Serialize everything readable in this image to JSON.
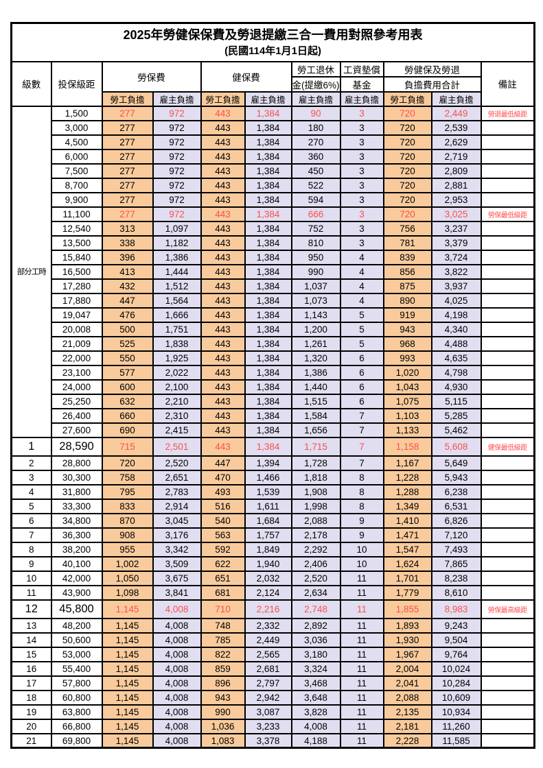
{
  "table": {
    "title": "2025年勞健保保費及勞退提繳三合一費用對照參考用表",
    "subtitle": "(民國114年1月1日起)",
    "headers": {
      "level": "級數",
      "bracket": "投保級距",
      "labor_insurance": "勞保費",
      "health_insurance": "健保費",
      "pension_line1": "勞工退休",
      "pension_line2": "金(提繳6%)",
      "wage_fund_line1": "工資墊償",
      "wage_fund_line2": "基金",
      "total_line1": "勞健保及勞退",
      "total_line2": "負擔費用合計",
      "remark": "備註",
      "employee_share": "勞工負擔",
      "employer_share": "雇主負擔"
    },
    "part_time_label": "部分工時",
    "colors": {
      "employee_column_bg": "#F9CB9C",
      "employer_column_bg": "#E0DEF0",
      "highlight_text": "#FF4D4D",
      "grid": "#000000"
    },
    "rows": [
      {
        "section": "part_time",
        "level": "",
        "bracket": "1,500",
        "values": [
          "277",
          "972",
          "443",
          "1,384",
          "90",
          "3",
          "720",
          "2,449"
        ],
        "remark": "勞退最低級距",
        "highlight": true,
        "emphasis": false
      },
      {
        "section": "part_time",
        "level": "",
        "bracket": "3,000",
        "values": [
          "277",
          "972",
          "443",
          "1,384",
          "180",
          "3",
          "720",
          "2,539"
        ],
        "remark": "",
        "highlight": false,
        "emphasis": false
      },
      {
        "section": "part_time",
        "level": "",
        "bracket": "4,500",
        "values": [
          "277",
          "972",
          "443",
          "1,384",
          "270",
          "3",
          "720",
          "2,629"
        ],
        "remark": "",
        "highlight": false,
        "emphasis": false
      },
      {
        "section": "part_time",
        "level": "",
        "bracket": "6,000",
        "values": [
          "277",
          "972",
          "443",
          "1,384",
          "360",
          "3",
          "720",
          "2,719"
        ],
        "remark": "",
        "highlight": false,
        "emphasis": false
      },
      {
        "section": "part_time",
        "level": "",
        "bracket": "7,500",
        "values": [
          "277",
          "972",
          "443",
          "1,384",
          "450",
          "3",
          "720",
          "2,809"
        ],
        "remark": "",
        "highlight": false,
        "emphasis": false
      },
      {
        "section": "part_time",
        "level": "",
        "bracket": "8,700",
        "values": [
          "277",
          "972",
          "443",
          "1,384",
          "522",
          "3",
          "720",
          "2,881"
        ],
        "remark": "",
        "highlight": false,
        "emphasis": false
      },
      {
        "section": "part_time",
        "level": "",
        "bracket": "9,900",
        "values": [
          "277",
          "972",
          "443",
          "1,384",
          "594",
          "3",
          "720",
          "2,953"
        ],
        "remark": "",
        "highlight": false,
        "emphasis": false
      },
      {
        "section": "part_time",
        "level": "",
        "bracket": "11,100",
        "values": [
          "277",
          "972",
          "443",
          "1,384",
          "666",
          "3",
          "720",
          "3,025"
        ],
        "remark": "勞保最低級距",
        "highlight": true,
        "emphasis": false
      },
      {
        "section": "part_time",
        "level": "",
        "bracket": "12,540",
        "values": [
          "313",
          "1,097",
          "443",
          "1,384",
          "752",
          "3",
          "756",
          "3,237"
        ],
        "remark": "",
        "highlight": false,
        "emphasis": false
      },
      {
        "section": "part_time",
        "level": "",
        "bracket": "13,500",
        "values": [
          "338",
          "1,182",
          "443",
          "1,384",
          "810",
          "3",
          "781",
          "3,379"
        ],
        "remark": "",
        "highlight": false,
        "emphasis": false
      },
      {
        "section": "part_time",
        "level": "",
        "bracket": "15,840",
        "values": [
          "396",
          "1,386",
          "443",
          "1,384",
          "950",
          "4",
          "839",
          "3,724"
        ],
        "remark": "",
        "highlight": false,
        "emphasis": false
      },
      {
        "section": "part_time",
        "level": "",
        "bracket": "16,500",
        "values": [
          "413",
          "1,444",
          "443",
          "1,384",
          "990",
          "4",
          "856",
          "3,822"
        ],
        "remark": "",
        "highlight": false,
        "emphasis": false
      },
      {
        "section": "part_time",
        "level": "",
        "bracket": "17,280",
        "values": [
          "432",
          "1,512",
          "443",
          "1,384",
          "1,037",
          "4",
          "875",
          "3,937"
        ],
        "remark": "",
        "highlight": false,
        "emphasis": false
      },
      {
        "section": "part_time",
        "level": "",
        "bracket": "17,880",
        "values": [
          "447",
          "1,564",
          "443",
          "1,384",
          "1,073",
          "4",
          "890",
          "4,025"
        ],
        "remark": "",
        "highlight": false,
        "emphasis": false
      },
      {
        "section": "part_time",
        "level": "",
        "bracket": "19,047",
        "values": [
          "476",
          "1,666",
          "443",
          "1,384",
          "1,143",
          "5",
          "919",
          "4,198"
        ],
        "remark": "",
        "highlight": false,
        "emphasis": false
      },
      {
        "section": "part_time",
        "level": "",
        "bracket": "20,008",
        "values": [
          "500",
          "1,751",
          "443",
          "1,384",
          "1,200",
          "5",
          "943",
          "4,340"
        ],
        "remark": "",
        "highlight": false,
        "emphasis": false
      },
      {
        "section": "part_time",
        "level": "",
        "bracket": "21,009",
        "values": [
          "525",
          "1,838",
          "443",
          "1,384",
          "1,261",
          "5",
          "968",
          "4,488"
        ],
        "remark": "",
        "highlight": false,
        "emphasis": false
      },
      {
        "section": "part_time",
        "level": "",
        "bracket": "22,000",
        "values": [
          "550",
          "1,925",
          "443",
          "1,384",
          "1,320",
          "6",
          "993",
          "4,635"
        ],
        "remark": "",
        "highlight": false,
        "emphasis": false
      },
      {
        "section": "part_time",
        "level": "",
        "bracket": "23,100",
        "values": [
          "577",
          "2,022",
          "443",
          "1,384",
          "1,386",
          "6",
          "1,020",
          "4,798"
        ],
        "remark": "",
        "highlight": false,
        "emphasis": false
      },
      {
        "section": "part_time",
        "level": "",
        "bracket": "24,000",
        "values": [
          "600",
          "2,100",
          "443",
          "1,384",
          "1,440",
          "6",
          "1,043",
          "4,930"
        ],
        "remark": "",
        "highlight": false,
        "emphasis": false
      },
      {
        "section": "part_time",
        "level": "",
        "bracket": "25,250",
        "values": [
          "632",
          "2,210",
          "443",
          "1,384",
          "1,515",
          "6",
          "1,075",
          "5,115"
        ],
        "remark": "",
        "highlight": false,
        "emphasis": false
      },
      {
        "section": "part_time",
        "level": "",
        "bracket": "26,400",
        "values": [
          "660",
          "2,310",
          "443",
          "1,384",
          "1,584",
          "7",
          "1,103",
          "5,285"
        ],
        "remark": "",
        "highlight": false,
        "emphasis": false
      },
      {
        "section": "part_time",
        "level": "",
        "bracket": "27,600",
        "values": [
          "690",
          "2,415",
          "443",
          "1,384",
          "1,656",
          "7",
          "1,133",
          "5,462"
        ],
        "remark": "",
        "highlight": false,
        "emphasis": false
      },
      {
        "section": "level",
        "level": "1",
        "bracket": "28,590",
        "values": [
          "715",
          "2,501",
          "443",
          "1,384",
          "1,715",
          "7",
          "1,158",
          "5,608"
        ],
        "remark": "健保最低級距",
        "highlight": true,
        "emphasis": true
      },
      {
        "section": "level",
        "level": "2",
        "bracket": "28,800",
        "values": [
          "720",
          "2,520",
          "447",
          "1,394",
          "1,728",
          "7",
          "1,167",
          "5,649"
        ],
        "remark": "",
        "highlight": false,
        "emphasis": false
      },
      {
        "section": "level",
        "level": "3",
        "bracket": "30,300",
        "values": [
          "758",
          "2,651",
          "470",
          "1,466",
          "1,818",
          "8",
          "1,228",
          "5,943"
        ],
        "remark": "",
        "highlight": false,
        "emphasis": false
      },
      {
        "section": "level",
        "level": "4",
        "bracket": "31,800",
        "values": [
          "795",
          "2,783",
          "493",
          "1,539",
          "1,908",
          "8",
          "1,288",
          "6,238"
        ],
        "remark": "",
        "highlight": false,
        "emphasis": false
      },
      {
        "section": "level",
        "level": "5",
        "bracket": "33,300",
        "values": [
          "833",
          "2,914",
          "516",
          "1,611",
          "1,998",
          "8",
          "1,349",
          "6,531"
        ],
        "remark": "",
        "highlight": false,
        "emphasis": false
      },
      {
        "section": "level",
        "level": "6",
        "bracket": "34,800",
        "values": [
          "870",
          "3,045",
          "540",
          "1,684",
          "2,088",
          "9",
          "1,410",
          "6,826"
        ],
        "remark": "",
        "highlight": false,
        "emphasis": false
      },
      {
        "section": "level",
        "level": "7",
        "bracket": "36,300",
        "values": [
          "908",
          "3,176",
          "563",
          "1,757",
          "2,178",
          "9",
          "1,471",
          "7,120"
        ],
        "remark": "",
        "highlight": false,
        "emphasis": false
      },
      {
        "section": "level",
        "level": "8",
        "bracket": "38,200",
        "values": [
          "955",
          "3,342",
          "592",
          "1,849",
          "2,292",
          "10",
          "1,547",
          "7,493"
        ],
        "remark": "",
        "highlight": false,
        "emphasis": false
      },
      {
        "section": "level",
        "level": "9",
        "bracket": "40,100",
        "values": [
          "1,002",
          "3,509",
          "622",
          "1,940",
          "2,406",
          "10",
          "1,624",
          "7,865"
        ],
        "remark": "",
        "highlight": false,
        "emphasis": false
      },
      {
        "section": "level",
        "level": "10",
        "bracket": "42,000",
        "values": [
          "1,050",
          "3,675",
          "651",
          "2,032",
          "2,520",
          "11",
          "1,701",
          "8,238"
        ],
        "remark": "",
        "highlight": false,
        "emphasis": false
      },
      {
        "section": "level",
        "level": "11",
        "bracket": "43,900",
        "values": [
          "1,098",
          "3,841",
          "681",
          "2,124",
          "2,634",
          "11",
          "1,779",
          "8,610"
        ],
        "remark": "",
        "highlight": false,
        "emphasis": false
      },
      {
        "section": "level",
        "level": "12",
        "bracket": "45,800",
        "values": [
          "1,145",
          "4,008",
          "710",
          "2,216",
          "2,748",
          "11",
          "1,855",
          "8,983"
        ],
        "remark": "勞保最高級距",
        "highlight": true,
        "emphasis": true
      },
      {
        "section": "level",
        "level": "13",
        "bracket": "48,200",
        "values": [
          "1,145",
          "4,008",
          "748",
          "2,332",
          "2,892",
          "11",
          "1,893",
          "9,243"
        ],
        "remark": "",
        "highlight": false,
        "emphasis": false
      },
      {
        "section": "level",
        "level": "14",
        "bracket": "50,600",
        "values": [
          "1,145",
          "4,008",
          "785",
          "2,449",
          "3,036",
          "11",
          "1,930",
          "9,504"
        ],
        "remark": "",
        "highlight": false,
        "emphasis": false
      },
      {
        "section": "level",
        "level": "15",
        "bracket": "53,000",
        "values": [
          "1,145",
          "4,008",
          "822",
          "2,565",
          "3,180",
          "11",
          "1,967",
          "9,764"
        ],
        "remark": "",
        "highlight": false,
        "emphasis": false
      },
      {
        "section": "level",
        "level": "16",
        "bracket": "55,400",
        "values": [
          "1,145",
          "4,008",
          "859",
          "2,681",
          "3,324",
          "11",
          "2,004",
          "10,024"
        ],
        "remark": "",
        "highlight": false,
        "emphasis": false
      },
      {
        "section": "level",
        "level": "17",
        "bracket": "57,800",
        "values": [
          "1,145",
          "4,008",
          "896",
          "2,797",
          "3,468",
          "11",
          "2,041",
          "10,284"
        ],
        "remark": "",
        "highlight": false,
        "emphasis": false
      },
      {
        "section": "level",
        "level": "18",
        "bracket": "60,800",
        "values": [
          "1,145",
          "4,008",
          "943",
          "2,942",
          "3,648",
          "11",
          "2,088",
          "10,609"
        ],
        "remark": "",
        "highlight": false,
        "emphasis": false
      },
      {
        "section": "level",
        "level": "19",
        "bracket": "63,800",
        "values": [
          "1,145",
          "4,008",
          "990",
          "3,087",
          "3,828",
          "11",
          "2,135",
          "10,934"
        ],
        "remark": "",
        "highlight": false,
        "emphasis": false
      },
      {
        "section": "level",
        "level": "20",
        "bracket": "66,800",
        "values": [
          "1,145",
          "4,008",
          "1,036",
          "3,233",
          "4,008",
          "11",
          "2,181",
          "11,260"
        ],
        "remark": "",
        "highlight": false,
        "emphasis": false
      },
      {
        "section": "level",
        "level": "21",
        "bracket": "69,800",
        "values": [
          "1,145",
          "4,008",
          "1,083",
          "3,378",
          "4,188",
          "11",
          "2,228",
          "11,585"
        ],
        "remark": "",
        "highlight": false,
        "emphasis": false
      }
    ]
  }
}
